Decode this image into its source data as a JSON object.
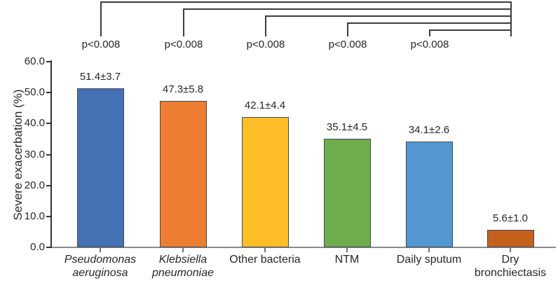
{
  "chart_data": {
    "type": "bar",
    "title": "",
    "xlabel": "",
    "ylabel": "Severe exacerbation (%)",
    "ylim": [
      0,
      60
    ],
    "yticks": [
      0,
      10,
      20,
      30,
      40,
      50,
      60
    ],
    "ytick_labels": [
      "0.0",
      "10.0",
      "20.0",
      "30.0",
      "40.0",
      "50.0",
      "60.0"
    ],
    "grid": false,
    "legend": "none",
    "categories": [
      "Pseudomonas aeruginosa",
      "Klebsiella pneumoniae",
      "Other bacteria",
      "NTM",
      "Daily sputum",
      "Dry bronchiectasis"
    ],
    "category_lines": [
      [
        "Pseudomonas",
        "aeruginosa"
      ],
      [
        "Klebsiella",
        "pneumoniae"
      ],
      [
        "Other bacteria"
      ],
      [
        "NTM"
      ],
      [
        "Daily sputum"
      ],
      [
        "Dry",
        "bronchiectasis"
      ]
    ],
    "category_italic": [
      true,
      true,
      false,
      false,
      false,
      false
    ],
    "values": [
      51.4,
      47.3,
      42.1,
      35.1,
      34.1,
      5.6
    ],
    "errors": [
      3.7,
      5.8,
      4.4,
      4.5,
      2.6,
      1.0
    ],
    "value_labels": [
      "51.4±3.7",
      "47.3±5.8",
      "42.1±4.4",
      "35.1±4.5",
      "34.1±2.6",
      "5.6±1.0"
    ],
    "bar_colors": [
      "#4472B4",
      "#ED7D31",
      "#FDBE27",
      "#6FAC4B",
      "#5397D1",
      "#C4611F"
    ],
    "bar_outline_color": "#3F4A59",
    "axis_color": "#333333",
    "baseline_color": "#8C8C8C",
    "bracket_color": "#3d3d3d",
    "text_color": "#262626",
    "significance_comparisons": [
      {
        "label": "p<0.008",
        "from": "Pseudomonas aeruginosa",
        "to": "Dry bronchiectasis"
      },
      {
        "label": "p<0.008",
        "from": "Klebsiella pneumoniae",
        "to": "Dry bronchiectasis"
      },
      {
        "label": "p<0.008",
        "from": "Other bacteria",
        "to": "Dry bronchiectasis"
      },
      {
        "label": "p<0.008",
        "from": "NTM",
        "to": "Dry bronchiectasis"
      },
      {
        "label": "p<0.008",
        "from": "Daily sputum",
        "to": "Dry bronchiectasis"
      }
    ]
  }
}
